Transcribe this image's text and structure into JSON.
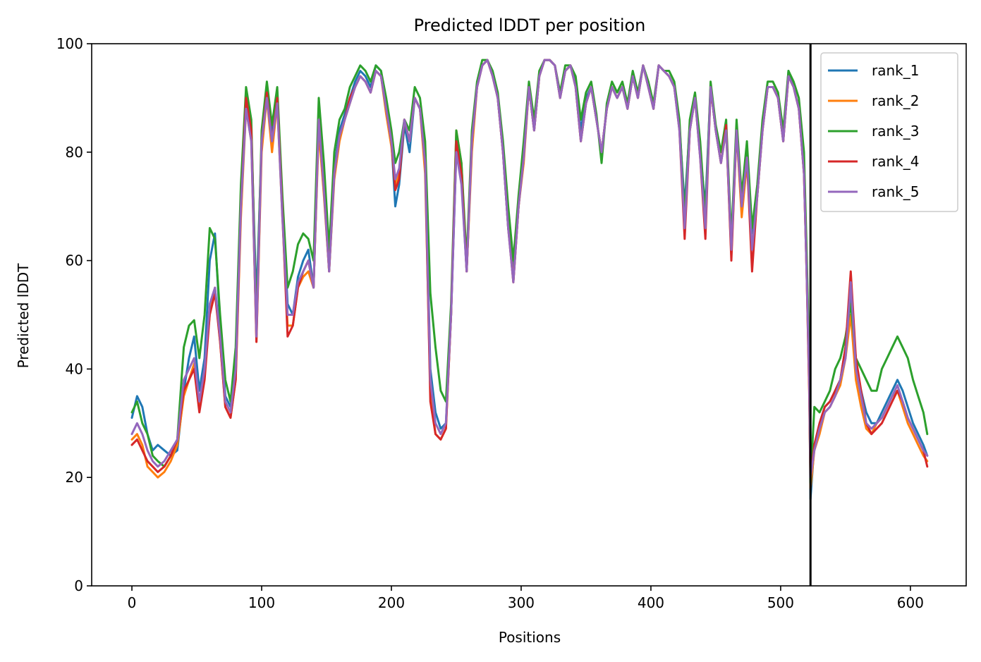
{
  "chart_data": {
    "type": "line",
    "title": "Predicted lDDT per position",
    "xlabel": "Positions",
    "ylabel": "Predicted lDDT",
    "xlim": [
      -31,
      643
    ],
    "ylim": [
      0,
      100
    ],
    "xticks": [
      0,
      100,
      200,
      300,
      400,
      500,
      600
    ],
    "yticks": [
      0,
      20,
      40,
      60,
      80,
      100
    ],
    "grid": false,
    "legend_position": "top-right",
    "vertical_line_x": 523,
    "x": [
      0,
      4,
      8,
      12,
      16,
      20,
      25,
      30,
      35,
      40,
      44,
      48,
      52,
      56,
      60,
      64,
      68,
      72,
      76,
      80,
      84,
      88,
      92,
      96,
      100,
      104,
      108,
      112,
      116,
      120,
      124,
      128,
      132,
      136,
      140,
      144,
      148,
      152,
      156,
      160,
      164,
      168,
      172,
      176,
      180,
      184,
      188,
      192,
      196,
      200,
      203,
      206,
      210,
      214,
      218,
      222,
      226,
      230,
      234,
      238,
      242,
      246,
      250,
      254,
      258,
      262,
      266,
      270,
      274,
      278,
      282,
      286,
      290,
      294,
      298,
      302,
      306,
      310,
      314,
      318,
      322,
      326,
      330,
      334,
      338,
      342,
      346,
      350,
      354,
      358,
      362,
      366,
      370,
      374,
      378,
      382,
      386,
      390,
      394,
      398,
      402,
      406,
      410,
      414,
      418,
      422,
      426,
      430,
      434,
      438,
      442,
      446,
      450,
      454,
      458,
      462,
      466,
      470,
      474,
      478,
      482,
      486,
      490,
      494,
      498,
      502,
      506,
      510,
      514,
      518,
      520,
      522,
      523,
      526,
      530,
      534,
      538,
      542,
      546,
      550,
      554,
      558,
      562,
      566,
      570,
      574,
      578,
      582,
      586,
      590,
      594,
      598,
      602,
      606,
      610,
      613
    ],
    "series": [
      {
        "name": "rank_1",
        "color": "#1f77b4",
        "values": [
          31,
          35,
          33,
          28,
          25,
          26,
          25,
          24,
          25,
          36,
          42,
          46,
          36,
          42,
          60,
          65,
          48,
          35,
          33,
          40,
          72,
          90,
          84,
          52,
          82,
          92,
          84,
          91,
          70,
          52,
          50,
          57,
          60,
          62,
          55,
          86,
          75,
          60,
          77,
          84,
          87,
          90,
          93,
          95,
          94,
          92,
          96,
          95,
          88,
          82,
          70,
          74,
          85,
          80,
          90,
          88,
          79,
          40,
          32,
          29,
          30,
          50,
          80,
          75,
          58,
          82,
          92,
          96,
          97,
          94,
          90,
          80,
          66,
          58,
          70,
          80,
          92,
          84,
          94,
          97,
          97,
          96,
          90,
          95,
          96,
          93,
          84,
          90,
          92,
          86,
          80,
          88,
          92,
          90,
          92,
          88,
          94,
          90,
          96,
          92,
          88,
          96,
          95,
          94,
          92,
          85,
          70,
          85,
          90,
          80,
          70,
          92,
          84,
          78,
          85,
          62,
          85,
          70,
          80,
          65,
          72,
          85,
          92,
          92,
          90,
          82,
          95,
          92,
          88,
          78,
          60,
          40,
          16,
          26,
          30,
          33,
          34,
          36,
          38,
          44,
          54,
          40,
          36,
          32,
          30,
          30,
          32,
          34,
          36,
          38,
          36,
          33,
          30,
          28,
          26,
          24
        ],
        "ranked_note": ""
      },
      {
        "name": "rank_2",
        "color": "#ff7f0e",
        "values": [
          27,
          28,
          26,
          22,
          21,
          20,
          21,
          23,
          26,
          35,
          38,
          41,
          33,
          40,
          50,
          55,
          45,
          33,
          31,
          38,
          68,
          88,
          82,
          45,
          80,
          90,
          80,
          89,
          68,
          48,
          48,
          55,
          57,
          58,
          55,
          84,
          72,
          58,
          75,
          82,
          86,
          89,
          92,
          94,
          93,
          91,
          95,
          94,
          87,
          81,
          74,
          76,
          86,
          82,
          90,
          88,
          76,
          36,
          28,
          27,
          29,
          50,
          84,
          78,
          58,
          80,
          92,
          96,
          97,
          94,
          90,
          80,
          68,
          56,
          70,
          78,
          92,
          84,
          94,
          97,
          97,
          96,
          90,
          95,
          96,
          92,
          82,
          89,
          92,
          86,
          80,
          88,
          92,
          90,
          92,
          88,
          94,
          90,
          96,
          92,
          88,
          96,
          95,
          94,
          92,
          85,
          66,
          84,
          90,
          80,
          66,
          92,
          84,
          78,
          84,
          61,
          84,
          68,
          78,
          62,
          72,
          84,
          92,
          92,
          90,
          82,
          94,
          92,
          88,
          76,
          58,
          36,
          18,
          25,
          28,
          32,
          33,
          35,
          37,
          42,
          50,
          38,
          33,
          29,
          28,
          30,
          31,
          33,
          35,
          36,
          33,
          30,
          28,
          26,
          24,
          23
        ]
      },
      {
        "name": "rank_3",
        "color": "#2ca02c",
        "values": [
          32,
          34,
          30,
          28,
          24,
          23,
          22,
          24,
          27,
          44,
          48,
          49,
          42,
          50,
          66,
          64,
          50,
          38,
          34,
          44,
          74,
          92,
          86,
          48,
          84,
          93,
          85,
          92,
          72,
          55,
          58,
          63,
          65,
          64,
          60,
          90,
          78,
          62,
          80,
          86,
          88,
          92,
          94,
          96,
          95,
          93,
          96,
          95,
          90,
          84,
          78,
          80,
          86,
          84,
          92,
          90,
          82,
          54,
          44,
          36,
          34,
          52,
          84,
          78,
          60,
          84,
          93,
          97,
          97,
          95,
          91,
          82,
          70,
          60,
          72,
          82,
          93,
          86,
          95,
          97,
          97,
          96,
          91,
          96,
          96,
          94,
          86,
          91,
          93,
          87,
          78,
          89,
          93,
          91,
          93,
          89,
          95,
          91,
          96,
          93,
          89,
          96,
          95,
          95,
          93,
          86,
          68,
          86,
          91,
          82,
          68,
          93,
          85,
          80,
          86,
          64,
          86,
          72,
          82,
          66,
          74,
          86,
          93,
          93,
          91,
          84,
          95,
          93,
          90,
          80,
          62,
          42,
          19,
          33,
          32,
          34,
          36,
          40,
          42,
          46,
          52,
          42,
          40,
          38,
          36,
          36,
          40,
          42,
          44,
          46,
          44,
          42,
          38,
          35,
          32,
          28
        ]
      },
      {
        "name": "rank_4",
        "color": "#d62728",
        "values": [
          26,
          27,
          25,
          23,
          22,
          21,
          22,
          24,
          27,
          36,
          38,
          40,
          32,
          38,
          50,
          54,
          45,
          33,
          31,
          38,
          70,
          90,
          84,
          45,
          82,
          91,
          82,
          90,
          69,
          46,
          48,
          55,
          58,
          60,
          55,
          86,
          73,
          58,
          76,
          83,
          86,
          90,
          92,
          94,
          93,
          91,
          95,
          94,
          88,
          82,
          73,
          75,
          86,
          82,
          90,
          88,
          78,
          34,
          28,
          27,
          29,
          50,
          82,
          76,
          58,
          82,
          92,
          96,
          97,
          94,
          90,
          80,
          66,
          56,
          70,
          79,
          92,
          84,
          94,
          97,
          97,
          96,
          90,
          95,
          96,
          92,
          82,
          89,
          92,
          86,
          80,
          88,
          92,
          90,
          92,
          88,
          94,
          90,
          96,
          92,
          88,
          96,
          95,
          94,
          92,
          84,
          64,
          84,
          90,
          79,
          64,
          92,
          84,
          78,
          85,
          60,
          84,
          70,
          79,
          58,
          72,
          84,
          92,
          92,
          90,
          82,
          94,
          92,
          88,
          76,
          58,
          36,
          20,
          26,
          30,
          33,
          34,
          36,
          38,
          44,
          58,
          42,
          36,
          30,
          28,
          29,
          30,
          32,
          34,
          36,
          34,
          31,
          29,
          27,
          25,
          22
        ]
      },
      {
        "name": "rank_5",
        "color": "#9467bd",
        "values": [
          28,
          30,
          28,
          25,
          23,
          22,
          23,
          25,
          27,
          38,
          40,
          42,
          34,
          40,
          52,
          55,
          46,
          34,
          32,
          40,
          70,
          88,
          82,
          46,
          82,
          90,
          82,
          89,
          68,
          50,
          50,
          56,
          58,
          60,
          55,
          86,
          73,
          58,
          76,
          83,
          86,
          89,
          92,
          94,
          93,
          91,
          95,
          94,
          88,
          82,
          75,
          77,
          86,
          82,
          90,
          88,
          78,
          38,
          30,
          28,
          30,
          50,
          80,
          74,
          58,
          82,
          92,
          96,
          97,
          94,
          90,
          80,
          66,
          56,
          70,
          79,
          92,
          84,
          94,
          97,
          97,
          96,
          90,
          95,
          96,
          92,
          82,
          89,
          92,
          86,
          80,
          88,
          92,
          90,
          92,
          88,
          94,
          90,
          96,
          92,
          88,
          96,
          95,
          94,
          92,
          84,
          66,
          84,
          90,
          79,
          66,
          92,
          84,
          78,
          84,
          62,
          84,
          70,
          79,
          62,
          72,
          84,
          92,
          92,
          90,
          82,
          94,
          92,
          88,
          76,
          58,
          38,
          20,
          25,
          29,
          32,
          33,
          35,
          38,
          42,
          56,
          40,
          35,
          30,
          29,
          30,
          31,
          33,
          35,
          37,
          34,
          31,
          29,
          27,
          25,
          24
        ]
      }
    ]
  }
}
